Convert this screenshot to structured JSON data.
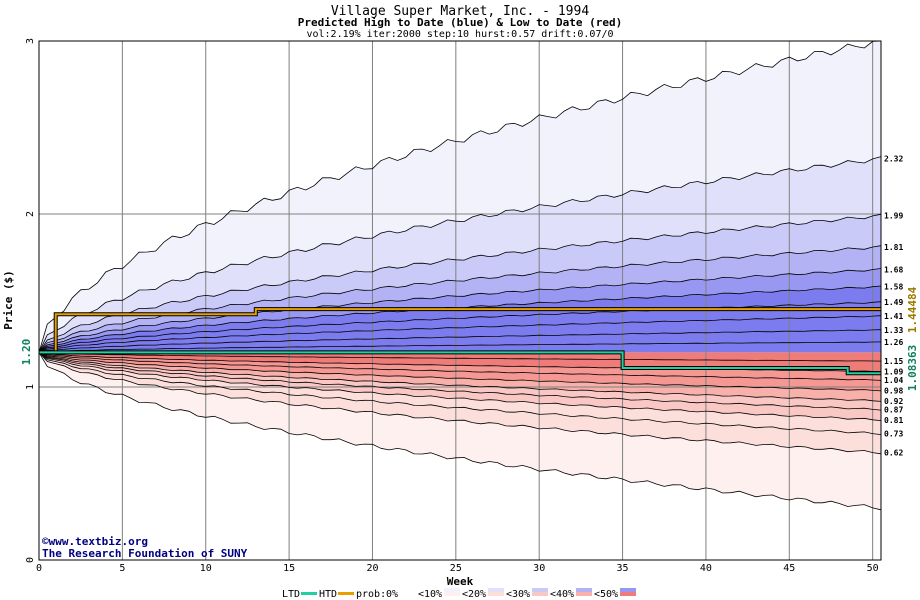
{
  "chart_data": {
    "type": "area",
    "title": "Village Super Market, Inc. - 1994",
    "subtitle": "Predicted High to Date (blue) &  Low to Date (red)",
    "params": "vol:2.19% iter:2000 step:10 hurst:0.57 drift:0.07/0",
    "xlabel": "Week",
    "ylabel": "Price ($)",
    "xlim": [
      0,
      50.5
    ],
    "ylim": [
      0,
      3
    ],
    "x_ticks": [
      0,
      5,
      10,
      15,
      20,
      25,
      30,
      35,
      40,
      45,
      50
    ],
    "y_ticks": [
      0,
      1,
      2,
      3
    ],
    "grid": true,
    "start_price": 1.2,
    "start_price_label": "1.20",
    "high_series_label": "1.44484",
    "low_series_label": "1.08363",
    "high_to_date": {
      "x": [
        0,
        1,
        1,
        13,
        13,
        50.5
      ],
      "y": [
        1.2,
        1.2,
        1.42,
        1.42,
        1.45,
        1.45
      ]
    },
    "low_to_date": {
      "x": [
        0,
        35,
        35,
        48.5,
        48.5,
        50.5
      ],
      "y": [
        1.2,
        1.2,
        1.11,
        1.11,
        1.08,
        1.08
      ]
    },
    "upper_percentile_lines": [
      {
        "label": "2.32",
        "end": 2.32
      },
      {
        "label": "1.99",
        "end": 1.99
      },
      {
        "label": "1.81",
        "end": 1.81
      },
      {
        "label": "1.68",
        "end": 1.68
      },
      {
        "label": "1.58",
        "end": 1.58
      },
      {
        "label": "1.49",
        "end": 1.49
      },
      {
        "label": "1.41",
        "end": 1.41
      },
      {
        "label": "1.33",
        "end": 1.33
      },
      {
        "label": "1.26",
        "end": 1.26
      }
    ],
    "lower_percentile_lines": [
      {
        "label": "1.15",
        "end": 1.15
      },
      {
        "label": "1.09",
        "end": 1.09
      },
      {
        "label": "1.04",
        "end": 1.04
      },
      {
        "label": "0.98",
        "end": 0.98
      },
      {
        "label": "0.92",
        "end": 0.92
      },
      {
        "label": "0.87",
        "end": 0.87
      },
      {
        "label": "0.81",
        "end": 0.81
      },
      {
        "label": "0.73",
        "end": 0.73
      },
      {
        "label": "0.62",
        "end": 0.62
      }
    ],
    "outer_upper_end": 3.0,
    "outer_lower_end": 0.3,
    "watermark": [
      "©www.textbiz.org",
      "The Research Foundation of SUNY"
    ],
    "legend": {
      "ltd": "LTD",
      "htd": "HTD",
      "prob_prefix": "prob:",
      "items": [
        "0%",
        "<10%",
        "<20%",
        "<30%",
        "<40%",
        "<50%"
      ]
    }
  },
  "colors": {
    "grid": "#808080",
    "htd_line": "#e8a000",
    "ltd_line": "#20d0a0",
    "blue_bands": [
      "#f2f2fd",
      "#e0e0fb",
      "#cacaf8",
      "#b2b2f5",
      "#9898f2",
      "#7c7cee"
    ],
    "red_bands": [
      "#fdf0ee",
      "#fcdedb",
      "#fac8c4",
      "#f8b0ab",
      "#f59792",
      "#f07c79"
    ],
    "high_value_color": "#9a7a00",
    "low_value_color": "#108060"
  }
}
